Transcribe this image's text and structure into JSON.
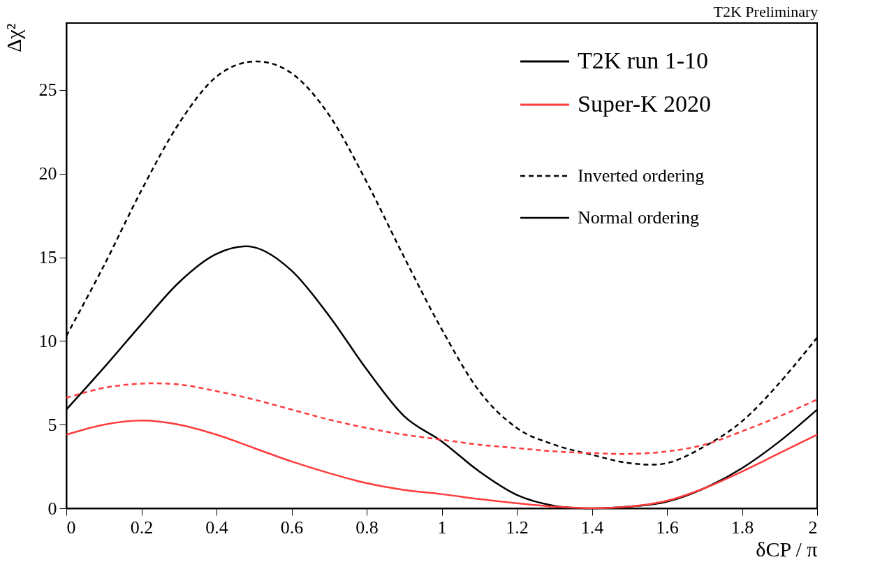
{
  "chart_data": {
    "type": "line",
    "xlabel": "δCP / π",
    "ylabel": "Δχ²",
    "annotations": [
      "T2K Preliminary",
      "Inverted ordering",
      "Normal ordering"
    ],
    "x": [
      0,
      0.1,
      0.2,
      0.3,
      0.4,
      0.5,
      0.6,
      0.7,
      0.8,
      0.9,
      1.0,
      1.1,
      1.2,
      1.3,
      1.4,
      1.5,
      1.6,
      1.7,
      1.8,
      1.9,
      2.0
    ],
    "series": [
      {
        "color": "#000000",
        "line_style": "dashed",
        "values": [
          10.3,
          14.5,
          19.0,
          23.0,
          25.8,
          26.7,
          26.0,
          23.5,
          19.5,
          15.0,
          10.7,
          7.0,
          4.8,
          3.8,
          3.2,
          2.7,
          2.7,
          3.7,
          5.2,
          7.5,
          10.2
        ]
      },
      {
        "name": "T2K run 1-10",
        "color": "#000000",
        "line_style": "solid",
        "values": [
          5.9,
          8.4,
          11.0,
          13.5,
          15.2,
          15.6,
          14.2,
          11.5,
          8.3,
          5.5,
          4.0,
          2.2,
          0.8,
          0.15,
          0.0,
          0.1,
          0.4,
          1.2,
          2.4,
          4.0,
          5.9
        ]
      },
      {
        "color": "#ff3b3b",
        "line_style": "dashed",
        "values": [
          6.6,
          7.2,
          7.45,
          7.4,
          7.0,
          6.5,
          5.9,
          5.3,
          4.8,
          4.4,
          4.1,
          3.8,
          3.6,
          3.4,
          3.3,
          3.25,
          3.4,
          3.8,
          4.6,
          5.5,
          6.5
        ]
      },
      {
        "name": "Super-K 2020",
        "color": "#ff3b3b",
        "line_style": "solid",
        "values": [
          4.4,
          5.0,
          5.25,
          5.0,
          4.4,
          3.6,
          2.8,
          2.1,
          1.5,
          1.1,
          0.85,
          0.55,
          0.3,
          0.1,
          0.0,
          0.1,
          0.45,
          1.2,
          2.2,
          3.3,
          4.4
        ]
      }
    ],
    "xlim": [
      0,
      2
    ],
    "ylim": [
      0,
      29
    ],
    "xticks": [
      0,
      0.2,
      0.4,
      0.6,
      0.8,
      1,
      1.2,
      1.4,
      1.6,
      1.8,
      2
    ],
    "yticks": [
      0,
      5,
      10,
      15,
      20,
      25
    ],
    "grid": false,
    "legend": "top right",
    "marker": "none"
  }
}
